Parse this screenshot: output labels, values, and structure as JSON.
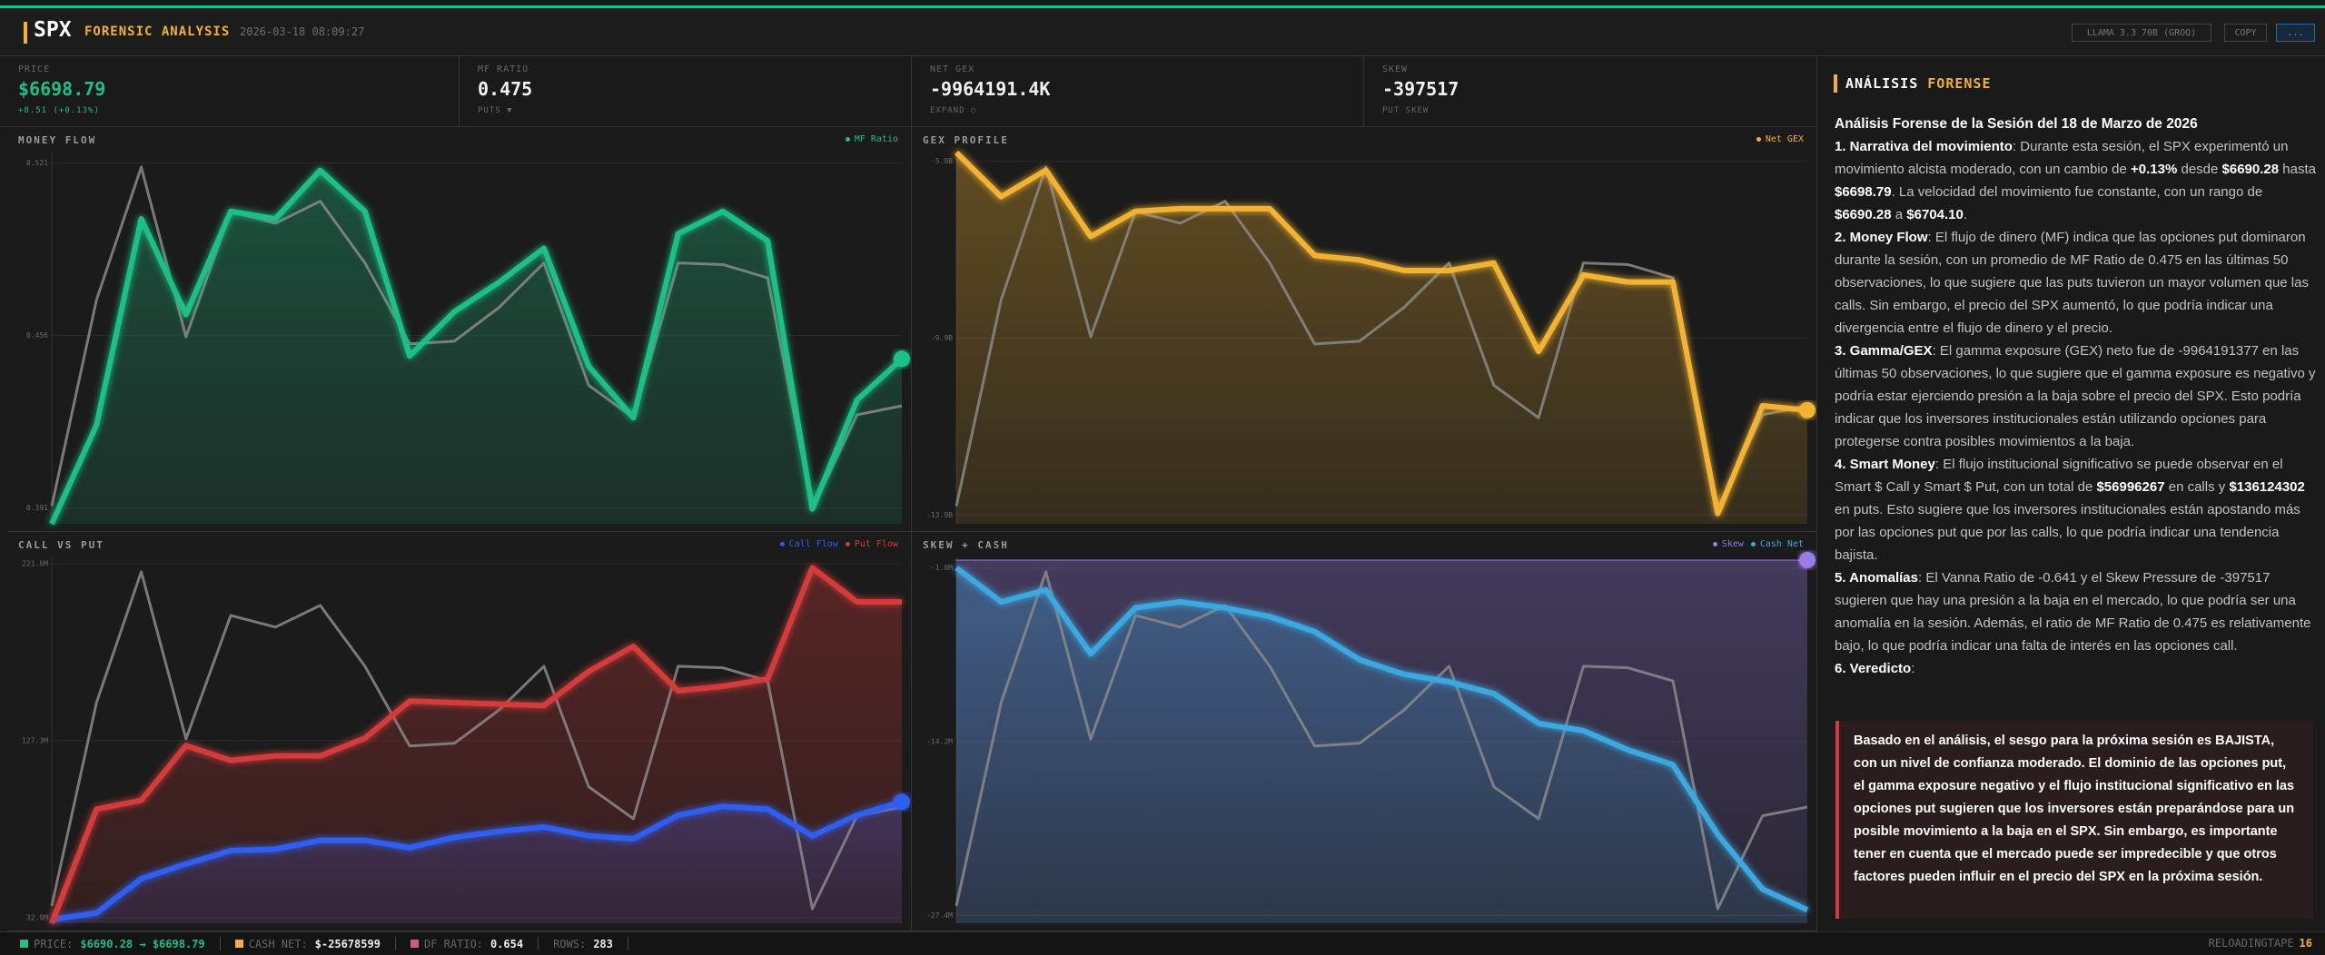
{
  "header": {
    "symbol": "SPX",
    "title": "FORENSIC ANALYSIS",
    "timestamp": "2026-03-18 08:09:27",
    "buttons": [
      "LLAMA 3.3 70B (GROQ)",
      "COPY",
      "..."
    ]
  },
  "stats": [
    {
      "label": "PRICE",
      "value": "$6698.79",
      "sub": "+8.51 (+0.13%)"
    },
    {
      "label": "MF RATIO",
      "value": "0.475",
      "sub": "PUTS ▼"
    },
    {
      "label": "NET GEX",
      "value": "-9964191.4K",
      "sub": "EXPAND ○"
    },
    {
      "label": "SKEW",
      "value": "-397517",
      "sub": "PUT SKEW"
    }
  ],
  "price_series": {
    "color": "#8a8a8a",
    "ylim": [
      6689,
      6705
    ],
    "values": [
      6689.76,
      6698.65,
      6704.37,
      6697.06,
      6702.46,
      6701.95,
      6702.9,
      6700.24,
      6696.75,
      6696.87,
      6698.33,
      6700.24,
      6694.97,
      6693.57,
      6700.24,
      6700.17,
      6699.6,
      6689.63,
      6693.7,
      6694.08
    ]
  },
  "charts": [
    {
      "title": "MONEY FLOW",
      "ylim": [
        0.385,
        0.525
      ],
      "yticks": [
        0.391,
        0.456,
        0.521
      ],
      "series": [
        {
          "name": "MF Ratio",
          "color": "#1fbf85",
          "values": [
            0.385,
            0.4222,
            0.5,
            0.4639,
            0.5028,
            0.5,
            0.5183,
            0.5028,
            0.4483,
            0.465,
            0.4761,
            0.4889,
            0.4444,
            0.425,
            0.4944,
            0.5028,
            0.4917,
            0.3906,
            0.4317,
            0.4472
          ]
        }
      ]
    },
    {
      "title": "GEX PROFILE",
      "ylim": [
        -14.1,
        -5.7
      ],
      "yticks": [
        {
          "value": -5.9,
          "label": "-5.9B"
        },
        {
          "value": -9.9,
          "label": "-9.9B"
        },
        {
          "value": -13.9,
          "label": "-13.9B"
        }
      ],
      "series": [
        {
          "name": "Net GEX",
          "color": "#f2b230",
          "values": [
            -5.7,
            -6.7,
            -6.1,
            -7.6,
            -7.03,
            -6.97,
            -6.97,
            -6.97,
            -8.03,
            -8.13,
            -8.37,
            -8.37,
            -8.2,
            -10.2,
            -8.47,
            -8.63,
            -8.63,
            -13.87,
            -11.43,
            -11.53
          ]
        }
      ]
    },
    {
      "title": "CALL VS PUT",
      "ylim": [
        30,
        225
      ],
      "yticks": [
        {
          "value": 32.9,
          "label": "32.9M"
        },
        {
          "value": 127.3,
          "label": "127.3M"
        },
        {
          "value": 221.6,
          "label": "221.6M"
        }
      ],
      "series": [
        {
          "name": "Call Flow",
          "color": "#2f5ef0",
          "values": [
            32,
            35.5,
            53.7,
            61.6,
            68.7,
            69.5,
            74.2,
            74.2,
            70.3,
            75.8,
            79.0,
            81.3,
            76.6,
            75.0,
            87.6,
            92.3,
            90.8,
            76.6,
            87.6,
            94.7
          ]
        },
        {
          "name": "Put Flow",
          "color": "#d43a3a",
          "values": [
            30,
            90.8,
            95.5,
            124.7,
            116.8,
            119.2,
            119.2,
            128.6,
            148.4,
            147.6,
            146.8,
            146.0,
            164.2,
            177.6,
            153.9,
            156.3,
            160.2,
            219.5,
            201.3,
            201.3
          ]
        }
      ]
    },
    {
      "title": "SKEW + CASH",
      "ylim": [
        -28,
        -0.2
      ],
      "yticks": [
        {
          "value": -1.0,
          "label": "-1.0M"
        },
        {
          "value": -14.2,
          "label": "-14.2M"
        },
        {
          "value": -27.4,
          "label": "-27.4M"
        }
      ],
      "series": [
        {
          "name": "Skew",
          "color": "#9a7ce8",
          "values": [
            -0.41,
            -0.4,
            -0.4,
            -0.39,
            -0.4,
            -0.4,
            -0.4,
            -0.4,
            -0.38,
            -0.39,
            -0.4,
            -0.4,
            -0.4,
            -0.4,
            -0.4,
            -0.4,
            -0.4,
            -0.4,
            -0.4,
            -0.4
          ]
        },
        {
          "name": "Cash Net",
          "color": "#3aa8e0",
          "values": [
            -0.99,
            -3.58,
            -2.68,
            -7.52,
            -4.03,
            -3.58,
            -4.03,
            -4.7,
            -5.83,
            -7.97,
            -9.09,
            -9.65,
            -10.55,
            -12.81,
            -13.37,
            -14.83,
            -15.96,
            -21.25,
            -25.41,
            -26.99
          ]
        }
      ]
    }
  ],
  "analysis": {
    "title": "ANÁLISIS",
    "title_accent": "FORENSE",
    "heading": "Análisis Forense de la Sesión del 18 de Marzo de 2026",
    "paragraphs": [
      [
        {
          "text": "1. Narrativa del movimiento",
          "bold": true
        },
        {
          "text": ": Durante esta sesión, el SPX experimentó un movimiento alcista moderado, con un cambio de "
        },
        {
          "text": "+0.13%",
          "bold": true
        },
        {
          "text": " desde "
        },
        {
          "text": "$6690.28",
          "bold": true
        },
        {
          "text": " hasta "
        },
        {
          "text": "$6698.79",
          "bold": true
        },
        {
          "text": ". La velocidad del movimiento fue constante, con un rango de "
        },
        {
          "text": "$6690.28",
          "bold": true
        },
        {
          "text": " a "
        },
        {
          "text": "$6704.10",
          "bold": true
        },
        {
          "text": "."
        }
      ],
      [
        {
          "text": "2. Money Flow",
          "bold": true
        },
        {
          "text": ": El flujo de dinero (MF) indica que las opciones put dominaron durante la sesión, con un promedio de MF Ratio de 0.475 en las últimas 50 observaciones, lo que sugiere que las puts tuvieron un mayor volumen que las calls. Sin embargo, el precio del SPX aumentó, lo que podría indicar una divergencia entre el flujo de dinero y el precio."
        }
      ],
      [
        {
          "text": "3. Gamma/GEX",
          "bold": true
        },
        {
          "text": ": El gamma exposure (GEX) neto fue de -9964191377 en las últimas 50 observaciones, lo que sugiere que el gamma exposure es negativo y podría estar ejerciendo presión a la baja sobre el precio del SPX. Esto podría indicar que los inversores institucionales están utilizando opciones para protegerse contra posibles movimientos a la baja."
        }
      ],
      [
        {
          "text": "4. Smart Money",
          "bold": true
        },
        {
          "text": ": El flujo institucional significativo se puede observar en el Smart $ Call y Smart $ Put, con un total de "
        },
        {
          "text": "$56996267",
          "bold": true
        },
        {
          "text": " en calls y "
        },
        {
          "text": "$136124302",
          "bold": true
        },
        {
          "text": " en puts. Esto sugiere que los inversores institucionales están apostando más por las opciones put que por las calls, lo que podría indicar una tendencia bajista."
        }
      ],
      [
        {
          "text": "5. Anomalías",
          "bold": true
        },
        {
          "text": ": El Vanna Ratio de -0.641 y el Skew Pressure de -397517 sugieren que hay una presión a la baja en el mercado, lo que podría ser una anomalía en la sesión. Además, el ratio de MF Ratio de 0.475 es relativamente bajo, lo que podría indicar una falta de interés en las opciones call."
        }
      ],
      [
        {
          "text": "6. Veredicto",
          "bold": true
        },
        {
          "text": ":"
        }
      ]
    ],
    "verdict": "Basado en el análisis, el sesgo para la próxima sesión es BAJISTA, con un nivel de confianza moderado. El dominio de las opciones put, el gamma exposure negativo y el flujo institucional significativo en las opciones put sugieren que los inversores están preparándose para un posible movimiento a la baja en el SPX. Sin embargo, es importante tener en cuenta que el mercado puede ser impredecible y que otros factores pueden influir en el precio del SPX en la próxima sesión."
  },
  "status": {
    "items": [
      {
        "label": "PRICE:",
        "value": "$6690.28 → $6698.79"
      },
      {
        "label": "CASH NET:",
        "value": "$-25678599"
      },
      {
        "label": "DF RATIO:",
        "value": "0.654"
      },
      {
        "label": "ROWS:",
        "value": "283"
      }
    ],
    "right_label": "RELOADINGTAPE",
    "right_value": "16"
  }
}
